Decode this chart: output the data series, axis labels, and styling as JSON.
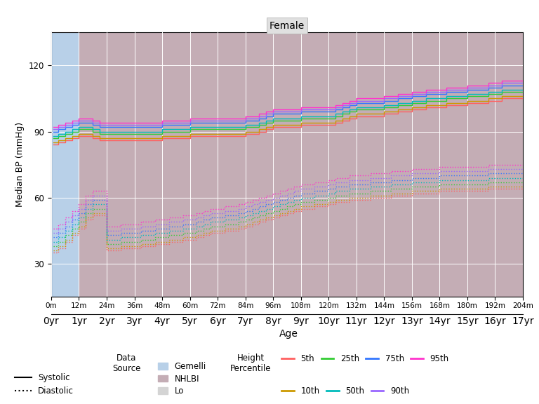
{
  "title": "Female",
  "xlabel": "Age",
  "ylabel": "Median BP (mmHg)",
  "background_gemelli": "#b8d0e8",
  "background_nhlbi": "#c4adb5",
  "background_lo": "#d4d4d4",
  "grid_color": "#ffffff",
  "ylim": [
    15,
    135
  ],
  "yticks": [
    30,
    60,
    90,
    120
  ],
  "height_percentile_colors": {
    "5th": "#ff6060",
    "10th": "#cc9900",
    "25th": "#33cc33",
    "50th": "#00bbbb",
    "75th": "#3377ff",
    "90th": "#9966ff",
    "95th": "#ff33cc"
  },
  "age_months": [
    1,
    3,
    6,
    9,
    12,
    15,
    18,
    21,
    24,
    27,
    30,
    33,
    36,
    39,
    42,
    45,
    48,
    51,
    54,
    57,
    60,
    63,
    66,
    69,
    72,
    75,
    78,
    81,
    84,
    87,
    90,
    93,
    96,
    99,
    102,
    105,
    108,
    111,
    114,
    117,
    120,
    123,
    126,
    129,
    132,
    135,
    138,
    141,
    144,
    147,
    150,
    153,
    156,
    159,
    162,
    165,
    168,
    171,
    174,
    177,
    180,
    183,
    186,
    189,
    192,
    195,
    198,
    201,
    204
  ],
  "systolic": {
    "5th": [
      84,
      85,
      86,
      87,
      88,
      88,
      87,
      86,
      86,
      86,
      86,
      86,
      86,
      86,
      86,
      86,
      87,
      87,
      87,
      87,
      88,
      88,
      88,
      88,
      88,
      88,
      88,
      88,
      89,
      89,
      90,
      91,
      92,
      92,
      92,
      92,
      93,
      93,
      93,
      93,
      93,
      94,
      95,
      96,
      97,
      97,
      97,
      97,
      98,
      98,
      99,
      99,
      100,
      100,
      101,
      101,
      101,
      102,
      102,
      102,
      103,
      103,
      103,
      104,
      104,
      105,
      105,
      105,
      105
    ],
    "10th": [
      85,
      86,
      87,
      88,
      89,
      89,
      88,
      87,
      87,
      87,
      87,
      87,
      87,
      87,
      87,
      87,
      88,
      88,
      88,
      88,
      89,
      89,
      89,
      89,
      89,
      89,
      89,
      89,
      90,
      90,
      91,
      92,
      93,
      93,
      93,
      93,
      94,
      94,
      94,
      94,
      94,
      95,
      96,
      97,
      98,
      98,
      98,
      98,
      99,
      99,
      100,
      100,
      101,
      101,
      102,
      102,
      102,
      103,
      103,
      103,
      104,
      104,
      104,
      105,
      105,
      106,
      106,
      106,
      106
    ],
    "25th": [
      87,
      88,
      89,
      90,
      91,
      91,
      90,
      89,
      89,
      89,
      89,
      89,
      89,
      89,
      89,
      89,
      90,
      90,
      90,
      90,
      91,
      91,
      91,
      91,
      91,
      91,
      91,
      91,
      92,
      92,
      93,
      94,
      95,
      95,
      95,
      95,
      96,
      96,
      96,
      96,
      96,
      97,
      98,
      99,
      100,
      100,
      100,
      100,
      101,
      101,
      102,
      102,
      103,
      103,
      104,
      104,
      104,
      105,
      105,
      105,
      106,
      106,
      106,
      107,
      107,
      108,
      108,
      108,
      108
    ],
    "50th": [
      88,
      89,
      90,
      91,
      92,
      92,
      91,
      90,
      90,
      90,
      90,
      90,
      90,
      90,
      90,
      90,
      91,
      91,
      91,
      91,
      92,
      92,
      92,
      92,
      92,
      92,
      92,
      92,
      93,
      93,
      94,
      95,
      96,
      96,
      96,
      96,
      97,
      97,
      97,
      97,
      97,
      98,
      99,
      100,
      101,
      101,
      101,
      101,
      102,
      102,
      103,
      103,
      104,
      104,
      105,
      105,
      105,
      106,
      106,
      106,
      107,
      107,
      107,
      108,
      108,
      109,
      109,
      109,
      109
    ],
    "75th": [
      90,
      91,
      92,
      93,
      94,
      94,
      93,
      92,
      92,
      92,
      92,
      92,
      92,
      92,
      92,
      92,
      93,
      93,
      93,
      93,
      94,
      94,
      94,
      94,
      94,
      94,
      94,
      94,
      95,
      95,
      96,
      97,
      98,
      98,
      98,
      98,
      99,
      99,
      99,
      99,
      99,
      100,
      101,
      102,
      103,
      103,
      103,
      103,
      104,
      104,
      105,
      105,
      106,
      106,
      107,
      107,
      107,
      108,
      108,
      108,
      109,
      109,
      109,
      110,
      110,
      111,
      111,
      111,
      111
    ],
    "90th": [
      91,
      92,
      93,
      94,
      95,
      95,
      94,
      93,
      93,
      93,
      93,
      93,
      93,
      93,
      93,
      93,
      94,
      94,
      94,
      94,
      95,
      95,
      95,
      95,
      95,
      95,
      95,
      95,
      96,
      96,
      97,
      98,
      99,
      99,
      99,
      99,
      100,
      100,
      100,
      100,
      100,
      101,
      102,
      103,
      104,
      104,
      104,
      104,
      105,
      105,
      106,
      106,
      107,
      107,
      108,
      108,
      108,
      109,
      109,
      109,
      110,
      110,
      110,
      111,
      111,
      112,
      112,
      112,
      112
    ],
    "95th": [
      92,
      93,
      94,
      95,
      96,
      96,
      95,
      94,
      94,
      94,
      94,
      94,
      94,
      94,
      94,
      94,
      95,
      95,
      95,
      95,
      96,
      96,
      96,
      96,
      96,
      96,
      96,
      96,
      97,
      97,
      98,
      99,
      100,
      100,
      100,
      100,
      101,
      101,
      101,
      101,
      101,
      102,
      103,
      104,
      105,
      105,
      105,
      105,
      106,
      106,
      107,
      107,
      108,
      108,
      109,
      109,
      109,
      110,
      110,
      110,
      111,
      111,
      111,
      112,
      112,
      113,
      113,
      113,
      113
    ]
  },
  "diastolic": {
    "5th": [
      35,
      37,
      40,
      43,
      46,
      50,
      52,
      52,
      36,
      36,
      37,
      37,
      37,
      38,
      38,
      39,
      39,
      40,
      40,
      41,
      41,
      42,
      43,
      44,
      44,
      45,
      45,
      46,
      47,
      48,
      49,
      50,
      51,
      52,
      53,
      54,
      55,
      55,
      56,
      56,
      57,
      58,
      58,
      59,
      59,
      59,
      60,
      60,
      60,
      61,
      61,
      61,
      62,
      62,
      62,
      62,
      63,
      63,
      63,
      63,
      63,
      63,
      63,
      64,
      64,
      64,
      64,
      64,
      64
    ],
    "10th": [
      36,
      38,
      41,
      44,
      47,
      51,
      53,
      53,
      37,
      37,
      38,
      38,
      38,
      39,
      39,
      40,
      40,
      41,
      41,
      42,
      42,
      43,
      44,
      45,
      45,
      46,
      46,
      47,
      48,
      49,
      50,
      51,
      52,
      53,
      54,
      55,
      56,
      56,
      57,
      57,
      58,
      59,
      59,
      60,
      60,
      60,
      61,
      61,
      61,
      62,
      62,
      62,
      63,
      63,
      63,
      63,
      64,
      64,
      64,
      64,
      64,
      64,
      64,
      65,
      65,
      65,
      65,
      65,
      65
    ],
    "25th": [
      38,
      40,
      43,
      46,
      49,
      53,
      55,
      55,
      39,
      39,
      40,
      40,
      40,
      41,
      41,
      42,
      42,
      43,
      43,
      44,
      44,
      45,
      46,
      47,
      47,
      48,
      48,
      49,
      50,
      51,
      52,
      53,
      54,
      55,
      56,
      57,
      58,
      58,
      59,
      59,
      60,
      61,
      61,
      62,
      62,
      62,
      63,
      63,
      63,
      64,
      64,
      64,
      65,
      65,
      65,
      65,
      66,
      66,
      66,
      66,
      66,
      66,
      66,
      67,
      67,
      67,
      67,
      67,
      67
    ],
    "50th": [
      40,
      42,
      45,
      48,
      51,
      55,
      57,
      57,
      41,
      41,
      42,
      42,
      42,
      43,
      43,
      44,
      44,
      45,
      45,
      46,
      46,
      47,
      48,
      49,
      49,
      50,
      50,
      51,
      52,
      53,
      54,
      55,
      56,
      57,
      58,
      59,
      60,
      60,
      61,
      61,
      62,
      63,
      63,
      64,
      64,
      64,
      65,
      65,
      65,
      66,
      66,
      66,
      67,
      67,
      67,
      67,
      68,
      68,
      68,
      68,
      68,
      68,
      68,
      69,
      69,
      69,
      69,
      69,
      69
    ],
    "75th": [
      42,
      44,
      47,
      50,
      53,
      57,
      59,
      59,
      43,
      43,
      44,
      44,
      44,
      45,
      45,
      46,
      46,
      47,
      47,
      48,
      48,
      49,
      50,
      51,
      51,
      52,
      52,
      53,
      54,
      55,
      56,
      57,
      58,
      59,
      60,
      61,
      62,
      62,
      63,
      63,
      64,
      65,
      65,
      66,
      66,
      66,
      67,
      67,
      67,
      68,
      68,
      68,
      69,
      69,
      69,
      69,
      70,
      70,
      70,
      70,
      70,
      70,
      70,
      71,
      71,
      71,
      71,
      71,
      71
    ],
    "90th": [
      44,
      46,
      49,
      52,
      55,
      59,
      61,
      61,
      45,
      45,
      46,
      46,
      46,
      47,
      47,
      48,
      48,
      49,
      49,
      50,
      50,
      51,
      52,
      53,
      53,
      54,
      54,
      55,
      56,
      57,
      58,
      59,
      60,
      61,
      62,
      63,
      64,
      64,
      65,
      65,
      66,
      67,
      67,
      68,
      68,
      68,
      69,
      69,
      69,
      70,
      70,
      70,
      71,
      71,
      71,
      71,
      72,
      72,
      72,
      72,
      72,
      72,
      72,
      73,
      73,
      73,
      73,
      73,
      73
    ],
    "95th": [
      46,
      48,
      51,
      54,
      57,
      61,
      63,
      63,
      47,
      47,
      48,
      48,
      48,
      49,
      49,
      50,
      50,
      51,
      51,
      52,
      52,
      53,
      54,
      55,
      55,
      56,
      56,
      57,
      58,
      59,
      60,
      61,
      62,
      63,
      64,
      65,
      66,
      66,
      67,
      67,
      68,
      69,
      69,
      70,
      70,
      70,
      71,
      71,
      71,
      72,
      72,
      72,
      73,
      73,
      73,
      73,
      74,
      74,
      74,
      74,
      74,
      74,
      74,
      75,
      75,
      75,
      75,
      75,
      75
    ]
  },
  "gemelli_end_month": 12,
  "nhlbi_end_month": 204,
  "xtick_months": [
    0,
    12,
    24,
    36,
    48,
    60,
    72,
    84,
    96,
    108,
    120,
    132,
    144,
    156,
    168,
    180,
    192,
    204
  ],
  "xtick_labels_top": [
    "0m",
    "12m",
    "24m",
    "36m",
    "48m",
    "60m",
    "72m",
    "84m",
    "96m",
    "108m",
    "120m",
    "132m",
    "144m",
    "156m",
    "168m",
    "180m",
    "192m",
    "204m"
  ],
  "xtick_labels_bot": [
    "0yr",
    "1yr",
    "2yr",
    "3yr",
    "4yr",
    "5yr",
    "6yr",
    "7yr",
    "8yr",
    "9yr",
    "10yr",
    "11yr",
    "12yr",
    "13yr",
    "14yr",
    "15yr",
    "16yr",
    "17yr"
  ]
}
